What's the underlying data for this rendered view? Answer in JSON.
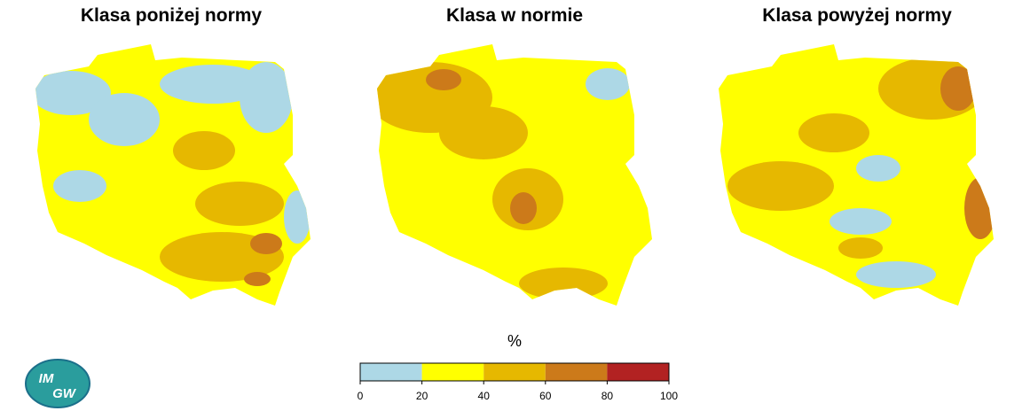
{
  "maps": [
    {
      "title": "Klasa poniżej normy"
    },
    {
      "title": "Klasa w normie"
    },
    {
      "title": "Klasa powyżej normy"
    }
  ],
  "legend": {
    "label": "%",
    "ticks": [
      0,
      20,
      40,
      60,
      80,
      100
    ],
    "colors": [
      "#add8e6",
      "#ffff00",
      "#e6b800",
      "#cc7a1a",
      "#b22222"
    ]
  },
  "logo": {
    "top": "IM",
    "bottom": "GW"
  }
}
